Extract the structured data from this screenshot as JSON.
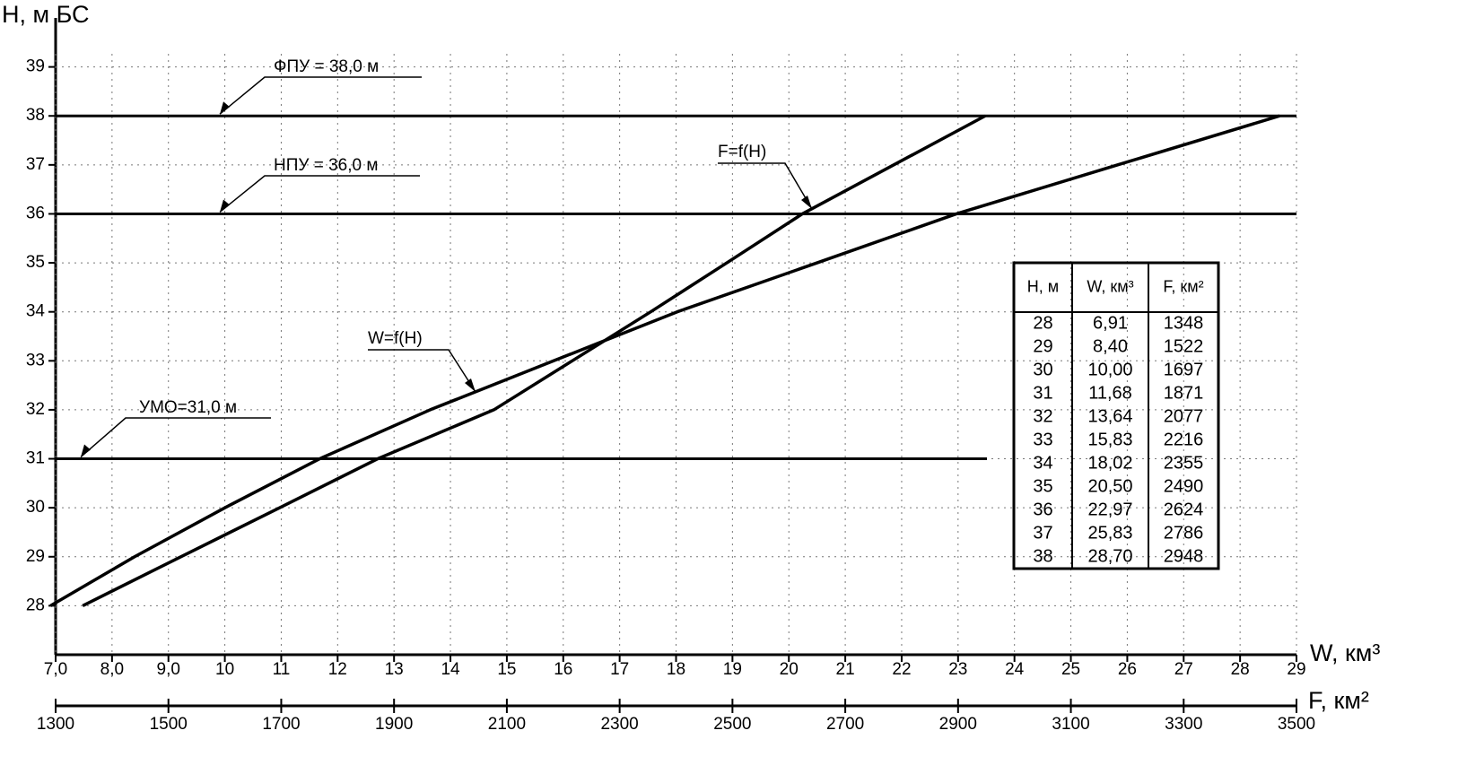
{
  "chart_data": {
    "type": "line",
    "y_label": "H, м БС",
    "x_label": "W, км³",
    "x2_label": "F, км²",
    "xlim": [
      7,
      29
    ],
    "x2lim": [
      1300,
      3500
    ],
    "ylim": [
      27,
      40
    ],
    "xticks": [
      {
        "value": 7,
        "label": "7,0"
      },
      {
        "value": 8,
        "label": "8,0"
      },
      {
        "value": 9,
        "label": "9,0"
      },
      10,
      11,
      12,
      13,
      14,
      15,
      16,
      17,
      18,
      19,
      20,
      21,
      22,
      23,
      24,
      25,
      26,
      27,
      28,
      29
    ],
    "x2ticks": [
      1300,
      1500,
      1700,
      1900,
      2100,
      2300,
      2500,
      2700,
      2900,
      3100,
      3300,
      3500
    ],
    "yticks": [
      28,
      29,
      30,
      31,
      32,
      33,
      34,
      35,
      36,
      37,
      38,
      39
    ],
    "grid": true,
    "series": [
      {
        "name": "W=f(H)",
        "color": "#000000",
        "axis": "x",
        "x": [
          6.91,
          8.4,
          10.0,
          11.68,
          13.64,
          15.83,
          18.02,
          20.5,
          22.97,
          25.83,
          28.7
        ],
        "values": [
          28,
          29,
          30,
          31,
          32,
          33,
          34,
          35,
          36,
          37,
          38
        ]
      },
      {
        "name": "F=f(H)",
        "color": "#000000",
        "axis": "x2",
        "x": [
          1348,
          1522,
          1697,
          1871,
          2077,
          2216,
          2355,
          2490,
          2624,
          2786,
          2948
        ],
        "values": [
          28,
          29,
          30,
          31,
          32,
          33,
          34,
          35,
          36,
          37,
          38
        ]
      }
    ],
    "hlines": [
      {
        "label": "ФПУ = 38,0 м",
        "value": 38
      },
      {
        "label": "НПУ = 36,0 м",
        "value": 36
      },
      {
        "label": "УМО=31,0 м",
        "value": 31
      }
    ]
  },
  "table": {
    "columns": [
      "H, м",
      "W, км³",
      "F, км²"
    ],
    "rows": [
      [
        "28",
        "6,91",
        "1348"
      ],
      [
        "29",
        "8,40",
        "1522"
      ],
      [
        "30",
        "10,00",
        "1697"
      ],
      [
        "31",
        "11,68",
        "1871"
      ],
      [
        "32",
        "13,64",
        "2077"
      ],
      [
        "33",
        "15,83",
        "2216"
      ],
      [
        "34",
        "18,02",
        "2355"
      ],
      [
        "35",
        "20,50",
        "2490"
      ],
      [
        "36",
        "22,97",
        "2624"
      ],
      [
        "37",
        "25,83",
        "2786"
      ],
      [
        "38",
        "28,70",
        "2948"
      ]
    ]
  }
}
